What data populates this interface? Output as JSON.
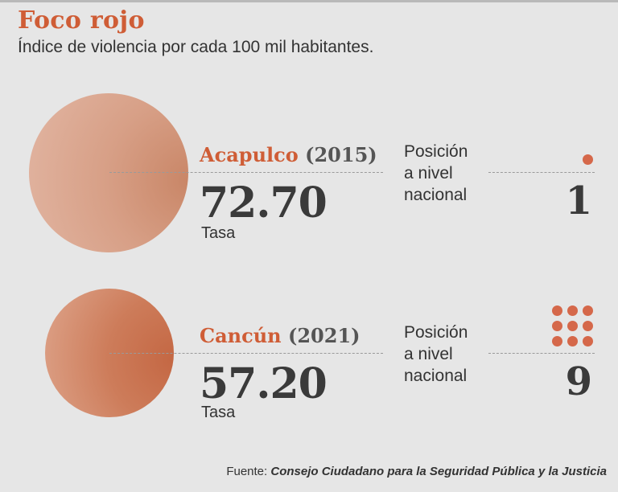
{
  "title": "Foco rojo",
  "subtitle": "Índice de violencia por cada 100 mil habitantes.",
  "chart_data": {
    "type": "bubble",
    "title": "Foco rojo",
    "subtitle": "Índice de violencia por cada 100 mil habitantes.",
    "categories": [
      "Acapulco",
      "Cancún"
    ],
    "years": [
      "2015",
      "2021"
    ],
    "values": [
      72.7,
      57.2
    ],
    "value_label": "Tasa",
    "rank_label": "Posición a nivel nacional",
    "ranks": [
      1,
      9
    ]
  },
  "items": [
    {
      "city": "Acapulco",
      "year": "(2015)",
      "rate": "72.70",
      "rate_label": "Tasa",
      "position_label_1": "Posición",
      "position_label_2": "a nivel",
      "position_label_3": "nacional",
      "rank": "1",
      "circle_color": "#d79f86"
    },
    {
      "city": "Cancún",
      "year": "(2021)",
      "rate": "57.20",
      "rate_label": "Tasa",
      "position_label_1": "Posición",
      "position_label_2": "a nivel",
      "position_label_3": "nacional",
      "rank": "9",
      "circle_color": "#cd7c5a"
    }
  ],
  "source": {
    "prefix": "Fuente:",
    "name": "Consejo Ciudadano para la Seguridad Pública y la Justicia"
  },
  "colors": {
    "accent": "#cf5d36",
    "dots": "#d5684a",
    "background": "#e6e6e6"
  }
}
